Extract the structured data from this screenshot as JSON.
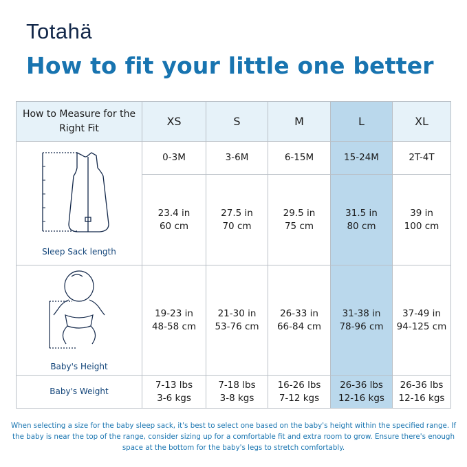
{
  "brand": "Totahä",
  "title": "How to fit your little one better",
  "table": {
    "header": "How to Measure for the Right Fit",
    "sizes": [
      "XS",
      "S",
      "M",
      "L",
      "XL"
    ],
    "highlighted": "L",
    "highlight_color": "#bad8ec",
    "ages": [
      "0-3M",
      "3-6M",
      "6-15M",
      "15-24M",
      "2T-4T"
    ],
    "length_label": "Sleep Sack length",
    "length": [
      [
        "23.4 in",
        "60 cm"
      ],
      [
        "27.5 in",
        "70 cm"
      ],
      [
        "29.5 in",
        "75 cm"
      ],
      [
        "31.5 in",
        "80 cm"
      ],
      [
        "39 in",
        "100 cm"
      ]
    ],
    "height_label": "Baby's Height",
    "height": [
      [
        "19-23 in",
        "48-58 cm"
      ],
      [
        "21-30 in",
        "53-76 cm"
      ],
      [
        "26-33 in",
        "66-84 cm"
      ],
      [
        "31-38 in",
        "78-96 cm"
      ],
      [
        "37-49 in",
        "94-125 cm"
      ]
    ],
    "weight_label": "Baby's Weight",
    "weight": [
      [
        "7-13 lbs",
        "3-6 kgs"
      ],
      [
        "7-18 lbs",
        "3-8 kgs"
      ],
      [
        "16-26 lbs",
        "7-12 kgs"
      ],
      [
        "26-36 lbs",
        "12-16 kgs"
      ],
      [
        "26-36 lbs",
        "12-16 kgs"
      ]
    ]
  },
  "note": "When selecting a size for the baby sleep sack, it's best to select one based on the baby's height within the specified range. If the baby is near the top of the range, consider sizing up for a comfortable fit and extra room to grow. Ensure there's enough space at the bottom for the baby's legs to stretch comfortably."
}
